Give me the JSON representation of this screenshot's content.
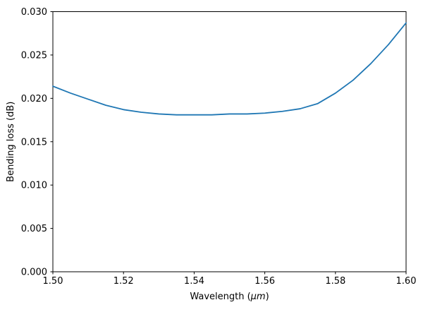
{
  "figure": {
    "background": "#ffffff"
  },
  "chart_data": {
    "type": "line",
    "title": "",
    "xlabel": "Wavelength (μm)",
    "xlabel_parts": [
      {
        "text": "Wavelength (",
        "style": "normal"
      },
      {
        "text": "μm",
        "style": "italic"
      },
      {
        "text": ")",
        "style": "normal"
      }
    ],
    "ylabel": "Bending loss (dB)",
    "xlim": [
      1.5,
      1.6
    ],
    "ylim": [
      0.0,
      0.03
    ],
    "grid": false,
    "legend": false,
    "line_color": "#1f77b4",
    "axis_color": "#000000",
    "xticks": {
      "values": [
        1.5,
        1.52,
        1.54,
        1.56,
        1.58,
        1.6
      ],
      "labels": [
        "1.50",
        "1.52",
        "1.54",
        "1.56",
        "1.58",
        "1.60"
      ]
    },
    "yticks": {
      "values": [
        0.0,
        0.005,
        0.01,
        0.015,
        0.02,
        0.025,
        0.03
      ],
      "labels": [
        "0.000",
        "0.005",
        "0.010",
        "0.015",
        "0.020",
        "0.025",
        "0.030"
      ]
    },
    "series": [
      {
        "name": "bending-loss",
        "x": [
          1.5,
          1.505,
          1.51,
          1.515,
          1.52,
          1.525,
          1.53,
          1.535,
          1.54,
          1.545,
          1.55,
          1.555,
          1.56,
          1.565,
          1.57,
          1.575,
          1.58,
          1.585,
          1.59,
          1.595,
          1.6
        ],
        "y": [
          0.0214,
          0.0206,
          0.0199,
          0.0192,
          0.0187,
          0.0184,
          0.0182,
          0.0181,
          0.0181,
          0.0181,
          0.0182,
          0.0182,
          0.0183,
          0.0185,
          0.0188,
          0.0194,
          0.0206,
          0.0221,
          0.024,
          0.0262,
          0.0287
        ]
      }
    ]
  }
}
